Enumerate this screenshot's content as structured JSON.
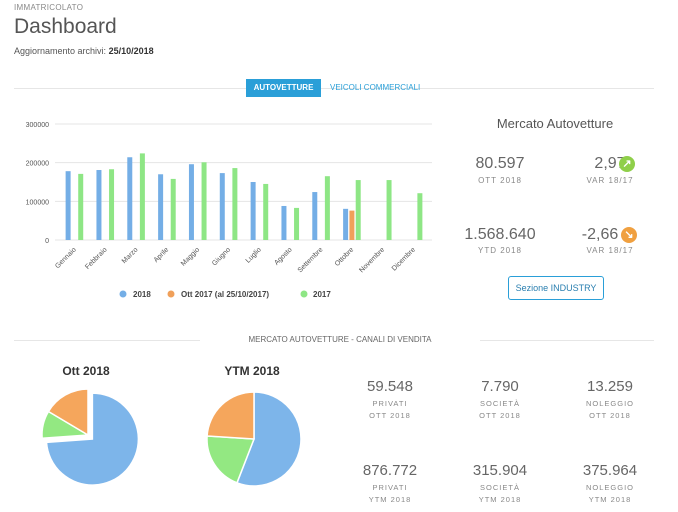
{
  "header": {
    "section": "IMMATRICOLATO",
    "title": "Dashboard",
    "update_label": "Aggiornamento archivi:",
    "update_date": "25/10/2018"
  },
  "tabs": [
    "AUTOVETTURE",
    "VEICOLI COMMERCIALI"
  ],
  "chart_data": [
    {
      "type": "bar",
      "categories": [
        "Gennaio",
        "Febbraio",
        "Marzo",
        "Aprile",
        "Maggio",
        "Giugno",
        "Luglio",
        "Agosto",
        "Settembre",
        "Ottobre",
        "Novembre",
        "Dicembre"
      ],
      "series": [
        {
          "name": "2018",
          "color": "#74aee6",
          "values": [
            178000,
            181000,
            214000,
            170000,
            196000,
            173000,
            150000,
            88000,
            124000,
            80597,
            null,
            null
          ]
        },
        {
          "name": "Ott 2017 (al 25/10/2017)",
          "color": "#f0a05a",
          "values": [
            null,
            null,
            null,
            null,
            null,
            null,
            null,
            null,
            null,
            76000,
            null,
            null
          ]
        },
        {
          "name": "2017",
          "color": "#8ee685",
          "values": [
            171000,
            183000,
            224000,
            158000,
            201000,
            186000,
            145000,
            83000,
            165000,
            155000,
            155000,
            121000
          ]
        }
      ],
      "ylim": [
        0,
        300000
      ],
      "yticks": [
        0,
        100000,
        200000,
        300000
      ],
      "grid": true,
      "legend": "bottom"
    },
    {
      "type": "pie",
      "title": "Ott 2018",
      "values": [
        59548,
        7790,
        13259
      ],
      "colors": [
        "#7db5ea",
        "#93e882",
        "#f5a65c"
      ],
      "explode": 0
    },
    {
      "type": "pie",
      "title": "YTM 2018",
      "values": [
        876772,
        315904,
        375964
      ],
      "colors": [
        "#7db5ea",
        "#93e882",
        "#f5a65c"
      ]
    }
  ],
  "market": {
    "title": "Mercato Autovetture",
    "kpis": [
      {
        "value": "80.597",
        "label": "OTT 2018"
      },
      {
        "value": "2,97",
        "label": "VAR 18/17"
      },
      {
        "value": "1.568.640",
        "label": "YTD 2018"
      },
      {
        "value": "-2,66",
        "label": "VAR 18/17"
      }
    ],
    "button": "Sezione INDUSTRY"
  },
  "channels": {
    "title": "MERCATO AUTOVETTURE - CANALI DI VENDITA",
    "kpis": [
      {
        "value": "59.548",
        "label": "PRIVATI",
        "period": "OTT 2018"
      },
      {
        "value": "7.790",
        "label": "SOCIETÀ",
        "period": "OTT 2018"
      },
      {
        "value": "13.259",
        "label": "NOLEGGIO",
        "period": "OTT 2018"
      },
      {
        "value": "876.772",
        "label": "PRIVATI",
        "period": "YTM 2018"
      },
      {
        "value": "315.904",
        "label": "SOCIETÀ",
        "period": "YTM 2018"
      },
      {
        "value": "375.964",
        "label": "NOLEGGIO",
        "period": "YTM 2018"
      }
    ]
  }
}
